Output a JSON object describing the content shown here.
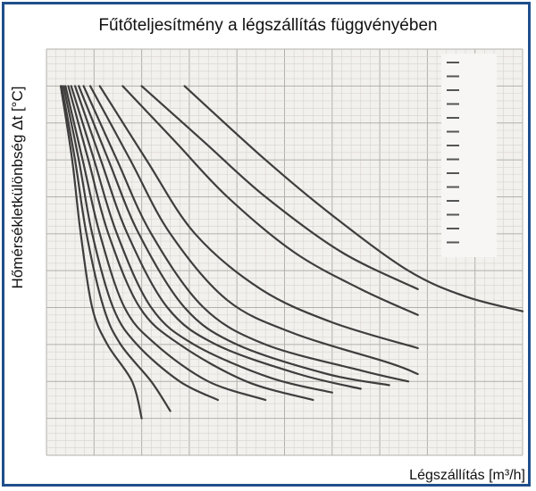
{
  "chart_data": {
    "type": "line",
    "title": "Fűtőteljesítmény a légszállítás függvényében",
    "xlabel": "Légszállítás [m³/h]",
    "ylabel": "Hőmérsékletkülönbség Δt [°C]",
    "xlim": [
      0,
      5000
    ],
    "ylim": [
      0,
      110
    ],
    "grid": true,
    "legend_position": "top-right",
    "series": [
      {
        "values": [
          [
            150,
            100
          ],
          [
            270,
            80
          ],
          [
            360,
            60
          ],
          [
            480,
            40
          ],
          [
            640,
            30
          ],
          [
            900,
            20
          ],
          [
            1000,
            10
          ]
        ]
      },
      {
        "values": [
          [
            160,
            100
          ],
          [
            300,
            80
          ],
          [
            420,
            60
          ],
          [
            600,
            40
          ],
          [
            780,
            30
          ],
          [
            1100,
            20
          ],
          [
            1300,
            12
          ]
        ]
      },
      {
        "values": [
          [
            180,
            100
          ],
          [
            340,
            80
          ],
          [
            480,
            60
          ],
          [
            700,
            40
          ],
          [
            950,
            30
          ],
          [
            1400,
            20
          ],
          [
            1800,
            15
          ]
        ]
      },
      {
        "values": [
          [
            200,
            100
          ],
          [
            380,
            80
          ],
          [
            560,
            60
          ],
          [
            820,
            40
          ],
          [
            1150,
            30
          ],
          [
            1700,
            20
          ],
          [
            2300,
            15
          ]
        ]
      },
      {
        "values": [
          [
            230,
            100
          ],
          [
            440,
            80
          ],
          [
            650,
            60
          ],
          [
            980,
            40
          ],
          [
            1400,
            30
          ],
          [
            2100,
            20
          ],
          [
            2800,
            15
          ]
        ]
      },
      {
        "values": [
          [
            260,
            100
          ],
          [
            500,
            80
          ],
          [
            740,
            60
          ],
          [
            1100,
            40
          ],
          [
            1550,
            30
          ],
          [
            2350,
            21
          ],
          [
            3000,
            17
          ]
        ]
      },
      {
        "values": [
          [
            300,
            100
          ],
          [
            570,
            80
          ],
          [
            850,
            60
          ],
          [
            1270,
            40
          ],
          [
            1780,
            30
          ],
          [
            2650,
            22
          ],
          [
            3300,
            18
          ]
        ]
      },
      {
        "values": [
          [
            340,
            100
          ],
          [
            650,
            80
          ],
          [
            970,
            60
          ],
          [
            1450,
            40
          ],
          [
            2000,
            30
          ],
          [
            2950,
            22
          ],
          [
            3600,
            19
          ]
        ]
      },
      {
        "values": [
          [
            390,
            100
          ],
          [
            740,
            80
          ],
          [
            1100,
            60
          ],
          [
            1650,
            40
          ],
          [
            2300,
            30
          ],
          [
            3300,
            23
          ],
          [
            3800,
            20
          ]
        ]
      },
      {
        "values": [
          [
            460,
            100
          ],
          [
            880,
            80
          ],
          [
            1300,
            60
          ],
          [
            1900,
            42
          ],
          [
            2600,
            33
          ],
          [
            3600,
            25
          ],
          [
            3900,
            22
          ]
        ]
      },
      {
        "values": [
          [
            560,
            100
          ],
          [
            1050,
            80
          ],
          [
            1560,
            60
          ],
          [
            2250,
            45
          ],
          [
            3000,
            36
          ],
          [
            3900,
            29
          ]
        ]
      },
      {
        "values": [
          [
            800,
            100
          ],
          [
            1350,
            85
          ],
          [
            1900,
            70
          ],
          [
            2600,
            55
          ],
          [
            3300,
            45
          ],
          [
            3900,
            38
          ]
        ]
      },
      {
        "values": [
          [
            1000,
            100
          ],
          [
            1650,
            85
          ],
          [
            2300,
            70
          ],
          [
            3100,
            55
          ],
          [
            3900,
            45
          ]
        ]
      },
      {
        "values": [
          [
            1450,
            100
          ],
          [
            2300,
            80
          ],
          [
            3000,
            65
          ],
          [
            3800,
            50
          ],
          [
            4400,
            43
          ],
          [
            5000,
            39
          ]
        ]
      }
    ]
  }
}
